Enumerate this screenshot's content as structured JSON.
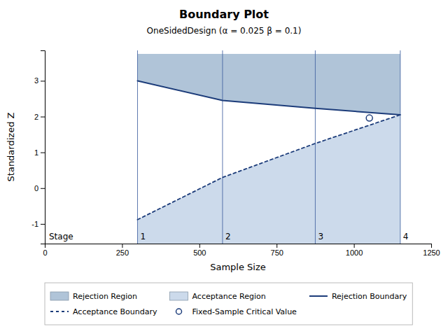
{
  "chart_data": {
    "type": "boundary",
    "title": "Boundary Plot",
    "subtitle": "OneSidedDesign (α = 0.025  β = 0.1)",
    "x_label": "Sample Size",
    "y_label": "Standardized Z",
    "xlim": [
      0,
      1250
    ],
    "ylim": [
      -1.55,
      3.85
    ],
    "xticks": [
      0,
      250,
      500,
      750,
      1000,
      1250
    ],
    "yticks": [
      -1,
      0,
      1,
      2,
      3
    ],
    "grid": false,
    "legend": "bottom",
    "x": [
      300,
      575,
      875,
      1150
    ],
    "stages": {
      "title": "Stage",
      "labels": [
        "1",
        "2",
        "3",
        "4"
      ],
      "color": "#4060a0"
    },
    "series": [
      {
        "name": "Rejection Region",
        "type": "area",
        "color": "#b0c4d8",
        "values": [
          3.0,
          2.45,
          2.23,
          2.05
        ],
        "fill_to": 3.75
      },
      {
        "name": "Acceptance Region",
        "type": "area",
        "color": "#ccdaeb",
        "values": [
          -0.88,
          0.3,
          1.25,
          2.05
        ],
        "fill_to": -1.55
      },
      {
        "name": "Rejection Boundary",
        "type": "line",
        "line_style": "solid",
        "color": "#1c3c7a",
        "values": [
          3.0,
          2.45,
          2.23,
          2.05
        ]
      },
      {
        "name": "Acceptance Boundary",
        "type": "line",
        "line_style": "dashed",
        "color": "#1c3c7a",
        "values": [
          -0.88,
          0.3,
          1.25,
          2.05
        ]
      },
      {
        "name": "Fixed-Sample Critical Value",
        "type": "scatter",
        "marker": "circle",
        "color": "#1c3c7a",
        "x": [
          1050
        ],
        "values": [
          1.96
        ]
      }
    ]
  }
}
